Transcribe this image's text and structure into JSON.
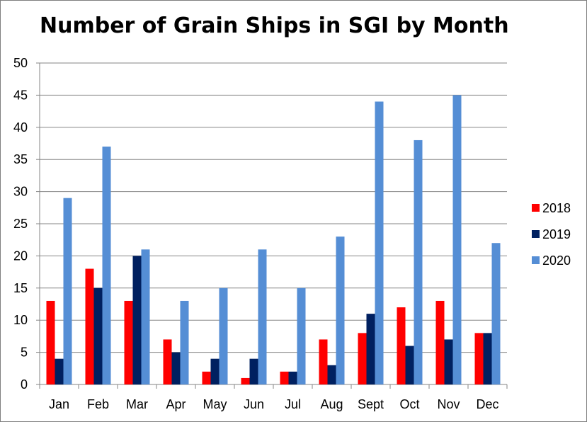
{
  "chart_data": {
    "type": "bar",
    "title": "Number of Grain Ships in SGI by Month",
    "xlabel": "",
    "ylabel": "",
    "categories": [
      "Jan",
      "Feb",
      "Mar",
      "Apr",
      "May",
      "Jun",
      "Jul",
      "Aug",
      "Sept",
      "Oct",
      "Nov",
      "Dec"
    ],
    "series": [
      {
        "name": "2018",
        "color": "#ff0000",
        "values": [
          13,
          18,
          13,
          7,
          2,
          1,
          2,
          7,
          8,
          12,
          13,
          8
        ]
      },
      {
        "name": "2019",
        "color": "#002060",
        "values": [
          4,
          15,
          20,
          5,
          4,
          4,
          2,
          3,
          11,
          6,
          7,
          8
        ]
      },
      {
        "name": "2020",
        "color": "#558ed5",
        "values": [
          29,
          37,
          21,
          13,
          15,
          21,
          15,
          23,
          44,
          38,
          45,
          22
        ]
      }
    ],
    "ylim": [
      0,
      50
    ],
    "yticks": [
      0,
      5,
      10,
      15,
      20,
      25,
      30,
      35,
      40,
      45,
      50
    ],
    "grid": true,
    "legend_position": "right"
  }
}
